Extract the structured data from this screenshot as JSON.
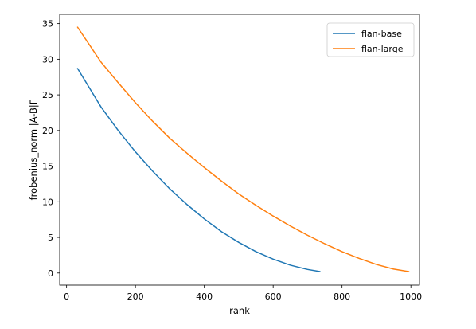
{
  "chart_data": {
    "type": "line",
    "xlabel": "rank",
    "ylabel": "frobenius_norm |A-B|F",
    "xlim": [
      -20,
      1025
    ],
    "ylim": [
      -1.7,
      36.3
    ],
    "xticks": [
      0,
      200,
      400,
      600,
      800,
      1000
    ],
    "yticks": [
      0,
      5,
      10,
      15,
      20,
      25,
      30,
      35
    ],
    "legend_position": "top-right",
    "grid": false,
    "series": [
      {
        "name": "flan-base",
        "color": "#1f77b4",
        "x": [
          32,
          100,
          150,
          200,
          250,
          300,
          350,
          400,
          450,
          500,
          550,
          600,
          650,
          700,
          736
        ],
        "y": [
          28.7,
          23.3,
          20.0,
          17.0,
          14.3,
          11.8,
          9.6,
          7.6,
          5.8,
          4.3,
          3.0,
          1.95,
          1.1,
          0.5,
          0.2
        ]
      },
      {
        "name": "flan-large",
        "color": "#ff7f0e",
        "x": [
          32,
          100,
          150,
          200,
          250,
          300,
          350,
          400,
          450,
          500,
          550,
          600,
          650,
          700,
          750,
          800,
          850,
          900,
          950,
          994
        ],
        "y": [
          34.5,
          29.6,
          26.7,
          23.9,
          21.3,
          18.9,
          16.8,
          14.8,
          12.9,
          11.1,
          9.5,
          8.0,
          6.6,
          5.3,
          4.1,
          3.0,
          2.05,
          1.2,
          0.55,
          0.2
        ]
      }
    ]
  }
}
